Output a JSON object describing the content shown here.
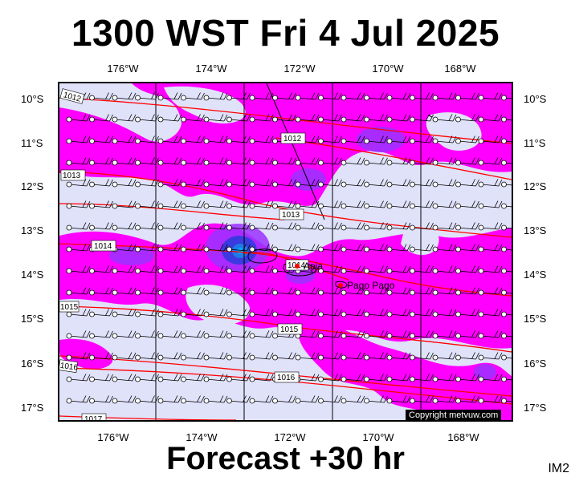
{
  "title": "1300 WST Fri 4 Jul 2025",
  "footer": "Forecast +30 hr",
  "model_label": "IM2",
  "copyright": "Copyright metvuw.com",
  "colors": {
    "background": "#ffffff",
    "low_rain": "#e0e2fa",
    "moderate_rain": "#ff00ff",
    "heavy_rain": "#9a33ff",
    "very_heavy_rain": "#3a3ae0",
    "extreme_rain": "#00aaff",
    "isobar": "#ff0000",
    "grid": "#000000"
  },
  "lon_labels": [
    "176°W",
    "174°W",
    "172°W",
    "170°W",
    "168°W"
  ],
  "lat_labels": [
    "10°S",
    "11°S",
    "12°S",
    "13°S",
    "14°S",
    "15°S",
    "16°S",
    "17°S"
  ],
  "isobar_labels": [
    "1012",
    "1012",
    "1013",
    "1013",
    "1014",
    "1014",
    "1015",
    "1015",
    "1016",
    "1016",
    "1017"
  ],
  "places": [
    {
      "name": "Apia"
    },
    {
      "name": "Pago Pago"
    }
  ]
}
